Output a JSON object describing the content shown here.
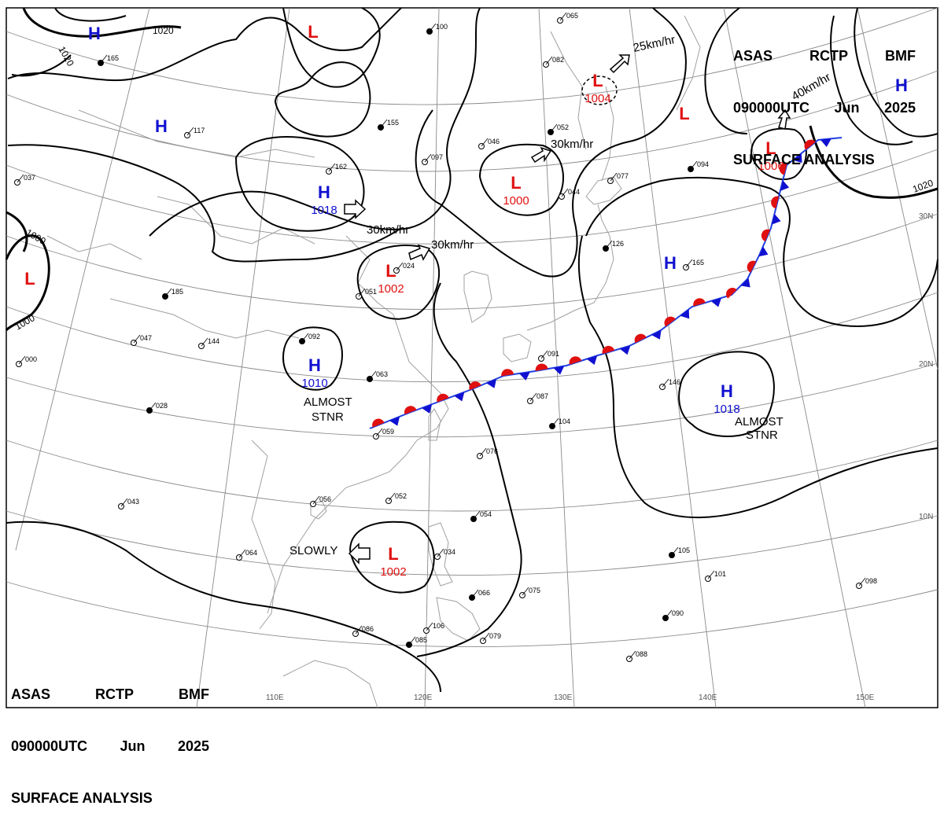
{
  "header": {
    "line1": [
      "ASAS",
      "RCTP",
      "BMF"
    ],
    "line2": [
      "090000UTC",
      "Jun",
      "2025"
    ],
    "line3": "SURFACE ANALYSIS"
  },
  "longitude_labels": [
    "110E",
    "120E",
    "130E",
    "140E",
    "150E"
  ],
  "latitude_labels": [
    "30N",
    "20N",
    "10N"
  ],
  "pressure_centers": [
    {
      "type": "H",
      "value": "1018",
      "color": "#1010d0"
    },
    {
      "type": "H",
      "value": "1010",
      "color": "#1010d0"
    },
    {
      "type": "H",
      "value": "1018",
      "color": "#1010d0"
    },
    {
      "type": "L",
      "value": "1002",
      "color": "#e01010"
    },
    {
      "type": "L",
      "value": "1000",
      "color": "#e01010"
    },
    {
      "type": "L",
      "value": "1002",
      "color": "#e01010"
    },
    {
      "type": "L",
      "value": "1004",
      "color": "#e01010"
    },
    {
      "type": "L",
      "value": "1006",
      "color": "#e01010"
    },
    {
      "type": "H",
      "value": "",
      "color": "#1010d0"
    },
    {
      "type": "H",
      "value": "",
      "color": "#1010d0"
    },
    {
      "type": "H",
      "value": "",
      "color": "#1010d0"
    },
    {
      "type": "H",
      "value": "",
      "color": "#1010d0"
    },
    {
      "type": "L",
      "value": "",
      "color": "#e01010"
    },
    {
      "type": "L",
      "value": "",
      "color": "#e01010"
    },
    {
      "type": "L",
      "value": "",
      "color": "#e01010"
    }
  ],
  "isobar_labels": [
    "1020",
    "1020",
    "1020",
    "1000",
    "1000"
  ],
  "motion_labels": [
    "25km/hr",
    "40km/hr",
    "30km/hr",
    "30km/hr",
    "30km/hr",
    "SLOWLY",
    "ALMOST",
    "STNR",
    "ALMOST",
    "STNR"
  ],
  "station_samples": [
    "165",
    "117",
    "162",
    "155",
    "097",
    "046",
    "052",
    "065",
    "082",
    "094",
    "044",
    "077",
    "185",
    "047",
    "144",
    "092",
    "051",
    "024",
    "063",
    "059",
    "087",
    "104",
    "064",
    "076",
    "028",
    "043",
    "052",
    "054",
    "034",
    "056",
    "066",
    "075",
    "086",
    "085",
    "079",
    "088",
    "105",
    "101",
    "098",
    "100",
    "146",
    "165",
    "126",
    "000",
    "091",
    "090",
    "106",
    "037"
  ],
  "colors": {
    "high": "#1010d0",
    "low": "#e01010",
    "front_cold": "#1010d0",
    "front_warm": "#e01010",
    "isobar": "#000000",
    "grid": "#888888",
    "coast": "#9a9a9a"
  }
}
